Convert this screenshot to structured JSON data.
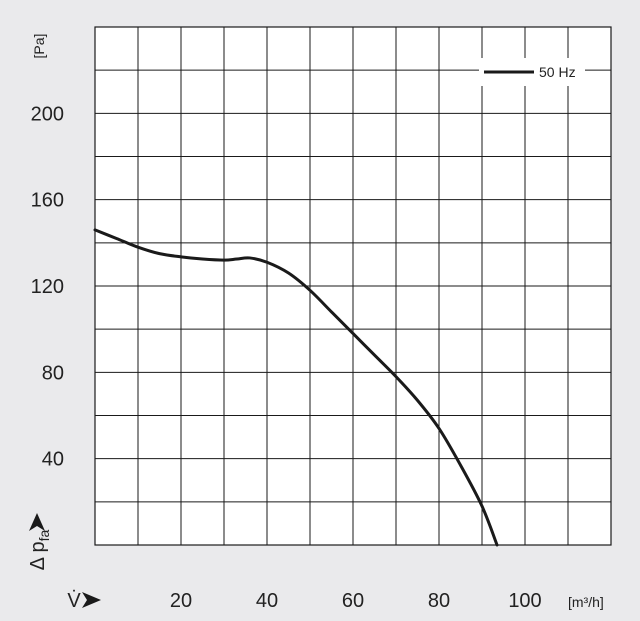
{
  "chart_data": {
    "type": "line",
    "y_unit": "[Pa]",
    "x_unit": "[m³/h]",
    "xlabel": "V̇",
    "ylabel": "Δ p_fa",
    "ylabel_main": "Δ p",
    "ylabel_sub": "fa",
    "xlim": [
      0,
      120
    ],
    "ylim": [
      0,
      240
    ],
    "x_ticks": [
      20,
      40,
      60,
      80,
      100
    ],
    "y_ticks": [
      40,
      80,
      120,
      160,
      200
    ],
    "grid": true,
    "legend_position": "top-right",
    "series": [
      {
        "name": "50 Hz",
        "color": "#1a1a1a",
        "points": [
          [
            0,
            146
          ],
          [
            5,
            142
          ],
          [
            10,
            138
          ],
          [
            15,
            135
          ],
          [
            20,
            133.5
          ],
          [
            25,
            132.5
          ],
          [
            30,
            132
          ],
          [
            33,
            132.5
          ],
          [
            36,
            133
          ],
          [
            40,
            131
          ],
          [
            45,
            126
          ],
          [
            50,
            118
          ],
          [
            55,
            108
          ],
          [
            60,
            98
          ],
          [
            65,
            88
          ],
          [
            70,
            78
          ],
          [
            75,
            67
          ],
          [
            80,
            54
          ],
          [
            85,
            37
          ],
          [
            90,
            18
          ],
          [
            93.5,
            0
          ]
        ]
      }
    ]
  }
}
